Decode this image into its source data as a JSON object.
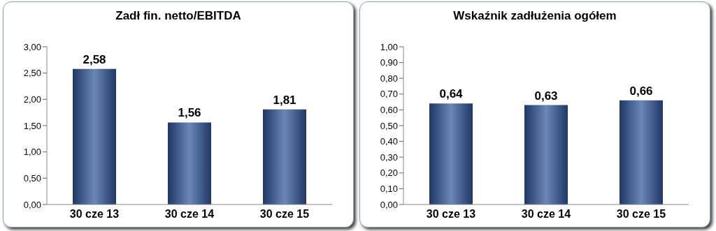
{
  "chart_data": [
    {
      "type": "bar",
      "title": "Zadł fin. netto/EBITDA",
      "categories": [
        "30 cze 13",
        "30 cze 14",
        "30 cze 15"
      ],
      "values": [
        2.58,
        1.56,
        1.81
      ],
      "value_labels": [
        "2,58",
        "1,56",
        "1,81"
      ],
      "color": "#1f3864",
      "ylim": [
        0,
        3
      ],
      "yticks": [
        {
          "value": 0,
          "label": "0,00"
        },
        {
          "value": 0.5,
          "label": "0,50"
        },
        {
          "value": 1,
          "label": "1,00"
        },
        {
          "value": 1.5,
          "label": "1,50"
        },
        {
          "value": 2,
          "label": "2,00"
        },
        {
          "value": 2.5,
          "label": "2,50"
        },
        {
          "value": 3,
          "label": "3,00"
        }
      ],
      "grid": false,
      "legend": false
    },
    {
      "type": "bar",
      "title": "Wskaźnik zadłużenia ogółem",
      "categories": [
        "30 cze 13",
        "30 cze 14",
        "30 cze 15"
      ],
      "values": [
        0.64,
        0.63,
        0.66
      ],
      "value_labels": [
        "0,64",
        "0,63",
        "0,66"
      ],
      "color": "#1f3864",
      "ylim": [
        0,
        1
      ],
      "yticks": [
        {
          "value": 0,
          "label": "0,00"
        },
        {
          "value": 0.1,
          "label": "0,10"
        },
        {
          "value": 0.2,
          "label": "0,20"
        },
        {
          "value": 0.3,
          "label": "0,30"
        },
        {
          "value": 0.4,
          "label": "0,40"
        },
        {
          "value": 0.5,
          "label": "0,50"
        },
        {
          "value": 0.6,
          "label": "0,60"
        },
        {
          "value": 0.7,
          "label": "0,70"
        },
        {
          "value": 0.8,
          "label": "0,80"
        },
        {
          "value": 0.9,
          "label": "0,90"
        },
        {
          "value": 1,
          "label": "1,00"
        }
      ],
      "grid": false,
      "legend": false
    }
  ]
}
